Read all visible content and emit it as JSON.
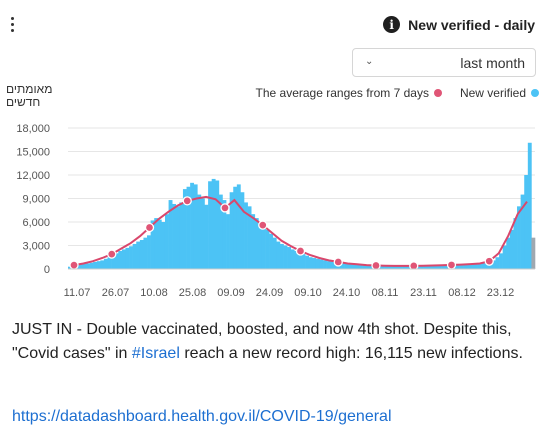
{
  "header": {
    "title": "New verified - daily",
    "info_icon": "info-icon"
  },
  "range_select": {
    "value": "last month"
  },
  "y_axis_label": "מאומתים חדשים",
  "legend": {
    "average_label": "The average ranges from 7 days",
    "new_label": "New verified",
    "average_color": "#e05576",
    "new_color": "#4cc3f5"
  },
  "post": {
    "text_before": "JUST IN - Double vaccinated, boosted, and now 4th shot. Despite this, \"Covid cases\" in ",
    "hashtag": "#Israel",
    "text_after": " reach a new record high: 16,115 new infections.",
    "link": "https://datadashboard.health.gov.il/COVID-19/general"
  },
  "chart_data": {
    "type": "bar",
    "ylim": [
      0,
      18000
    ],
    "yticks": [
      0,
      3000,
      6000,
      9000,
      12000,
      15000,
      18000
    ],
    "ytick_labels": [
      "0",
      "3,000",
      "6,000",
      "9,000",
      "12,000",
      "15,000",
      "18,000"
    ],
    "xtick_labels": [
      "11.07",
      "26.07",
      "10.08",
      "25.08",
      "09.09",
      "24.09",
      "09.10",
      "24.10",
      "08.11",
      "23.11",
      "08.12",
      "23.12"
    ],
    "series": [
      {
        "name": "New verified",
        "values": [
          300,
          400,
          500,
          600,
          650,
          700,
          800,
          900,
          1000,
          1100,
          1300,
          1500,
          1700,
          2000,
          2300,
          2500,
          2700,
          2900,
          3200,
          3500,
          3700,
          4000,
          4300,
          6200,
          6500,
          6300,
          6000,
          7000,
          8800,
          8300,
          8000,
          8500,
          10200,
          10500,
          11000,
          10800,
          9500,
          9000,
          8200,
          11200,
          11500,
          11300,
          9500,
          8800,
          7000,
          9800,
          10500,
          10800,
          9800,
          8500,
          8000,
          7000,
          6500,
          6000,
          5500,
          5000,
          4500,
          4000,
          3500,
          3200,
          3000,
          2800,
          2500,
          2300,
          2100,
          1900,
          1700,
          1500,
          1400,
          1300,
          1200,
          1100,
          1000,
          950,
          900,
          850,
          800,
          750,
          700,
          650,
          600,
          580,
          560,
          540,
          520,
          500,
          480,
          460,
          450,
          440,
          430,
          420,
          410,
          400,
          400,
          400,
          400,
          400,
          400,
          410,
          420,
          430,
          440,
          450,
          460,
          470,
          480,
          500,
          520,
          540,
          560,
          580,
          600,
          620,
          650,
          700,
          800,
          900,
          1100,
          1500,
          2000,
          3000,
          4000,
          5000,
          6500,
          8000,
          9500,
          12000,
          16115,
          4000
        ]
      },
      {
        "name": "The average ranges from 7 days",
        "values": [
          500,
          700,
          1000,
          1400,
          1900,
          2600,
          3300,
          4200,
          5300,
          6400,
          7300,
          8100,
          8700,
          9000,
          9200,
          8900,
          7800,
          8800,
          7300,
          6500,
          5600,
          4600,
          3600,
          2900,
          2300,
          1800,
          1400,
          1100,
          900,
          700,
          600,
          500,
          450,
          420,
          400,
          400,
          400,
          420,
          450,
          480,
          520,
          560,
          620,
          700,
          1000,
          2000,
          4200,
          7000,
          8600
        ]
      }
    ]
  }
}
